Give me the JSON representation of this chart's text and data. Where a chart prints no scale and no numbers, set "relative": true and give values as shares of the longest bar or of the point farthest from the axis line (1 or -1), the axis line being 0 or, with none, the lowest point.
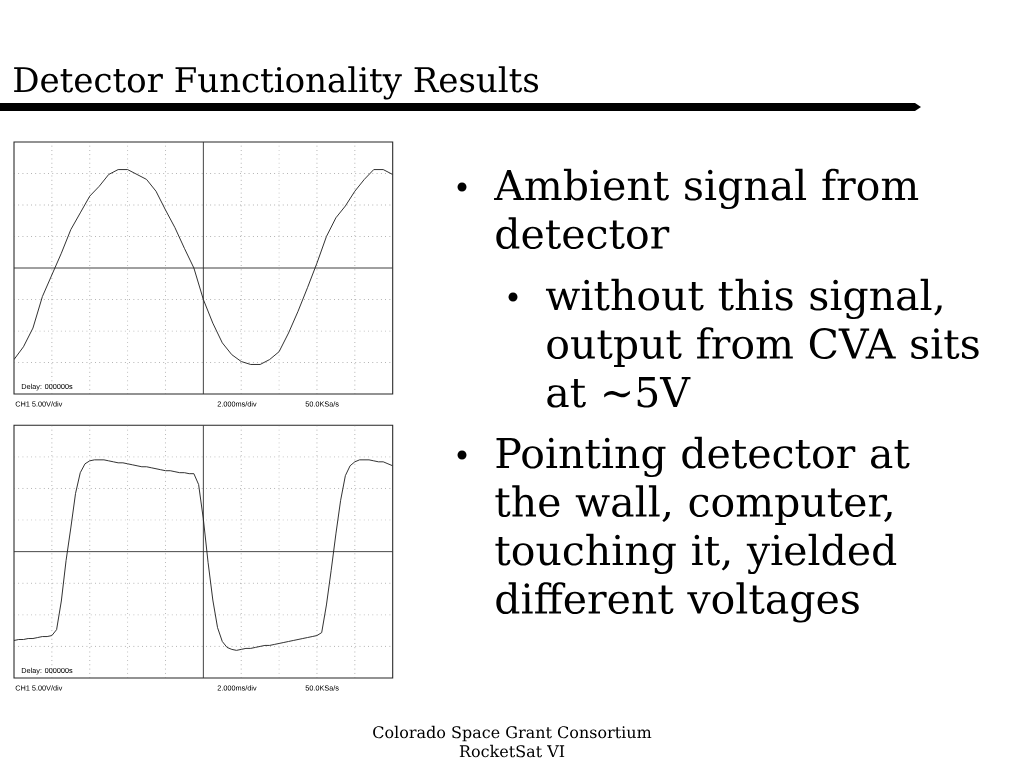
{
  "chart_data": [
    {
      "type": "other",
      "title": "Detector Functionality Results",
      "annotations": [
        "Ambient signal from detector",
        "without this signal, output from CVA sits at ~5V",
        "Pointing detector at the wall, computer, touching it, yielded different voltages",
        "Colorado Space Grant Consortium",
        "RocketSat VI"
      ]
    },
    {
      "type": "line",
      "relative": true,
      "grid": true,
      "color": "#222222",
      "categories": [
        null,
        null,
        null,
        null,
        null,
        null,
        null,
        null,
        null,
        null,
        null,
        null,
        null,
        null,
        null,
        null,
        null,
        null,
        null,
        null,
        null,
        null,
        null,
        null,
        null,
        null,
        null,
        null,
        null,
        null,
        null,
        null,
        null,
        null,
        null,
        null,
        null,
        null,
        null,
        null,
        null
      ],
      "values": [
        -0.93,
        -0.8,
        -0.61,
        -0.29,
        -0.07,
        0.15,
        0.39,
        0.56,
        0.73,
        0.83,
        0.95,
        1,
        1,
        0.95,
        0.9,
        0.78,
        0.59,
        0.41,
        0.2,
        0,
        -0.32,
        -0.56,
        -0.76,
        -0.88,
        -0.95,
        -0.98,
        -0.98,
        -0.93,
        -0.85,
        -0.66,
        -0.44,
        -0.2,
        0.05,
        0.32,
        0.51,
        0.63,
        0.78,
        0.9,
        1,
        1,
        0.95
      ],
      "annotations": [
        "Delay: 000000s",
        "CH1 5.00V/div",
        "2.000ms/div",
        "50.0KSa/s"
      ]
    },
    {
      "type": "line",
      "relative": true,
      "grid": true,
      "color": "#222222",
      "categories": [
        null,
        null,
        null,
        null,
        null,
        null,
        null,
        null,
        null,
        null,
        null,
        null,
        null,
        null,
        null,
        null,
        null,
        null,
        null,
        null,
        null,
        null,
        null,
        null,
        null,
        null,
        null,
        null,
        null,
        null,
        null,
        null,
        null,
        null,
        null,
        null,
        null,
        null,
        null,
        null,
        null,
        null,
        null,
        null,
        null,
        null,
        null,
        null,
        null,
        null,
        null,
        null,
        null,
        null,
        null,
        null,
        null,
        null,
        null,
        null,
        null,
        null,
        null,
        null,
        null,
        null,
        null,
        null,
        null,
        null,
        null,
        null,
        null,
        null,
        null,
        null,
        null,
        null,
        null,
        null,
        null
      ],
      "values": [
        -0.9,
        -0.89,
        -0.89,
        -0.88,
        -0.88,
        -0.87,
        -0.86,
        -0.86,
        -0.85,
        -0.79,
        -0.5,
        -0.09,
        0.24,
        0.59,
        0.8,
        0.89,
        0.92,
        0.93,
        0.93,
        0.93,
        0.92,
        0.91,
        0.9,
        0.9,
        0.89,
        0.88,
        0.87,
        0.86,
        0.86,
        0.85,
        0.84,
        0.83,
        0.82,
        0.82,
        0.81,
        0.8,
        0.8,
        0.79,
        0.79,
        0.68,
        0.33,
        -0.11,
        -0.49,
        -0.77,
        -0.91,
        -0.97,
        -0.99,
        -1.0,
        -0.99,
        -0.98,
        -0.98,
        -0.97,
        -0.96,
        -0.95,
        -0.95,
        -0.94,
        -0.93,
        -0.92,
        -0.91,
        -0.9,
        -0.89,
        -0.88,
        -0.87,
        -0.86,
        -0.85,
        -0.82,
        -0.54,
        -0.19,
        0.18,
        0.52,
        0.77,
        0.87,
        0.91,
        0.93,
        0.93,
        0.93,
        0.92,
        0.91,
        0.91,
        0.89,
        0.87
      ],
      "annotations": [
        "Delay: 000000s",
        "CH1 5.00V/div",
        "2.000ms/div",
        "50.0KSa/s"
      ]
    }
  ]
}
